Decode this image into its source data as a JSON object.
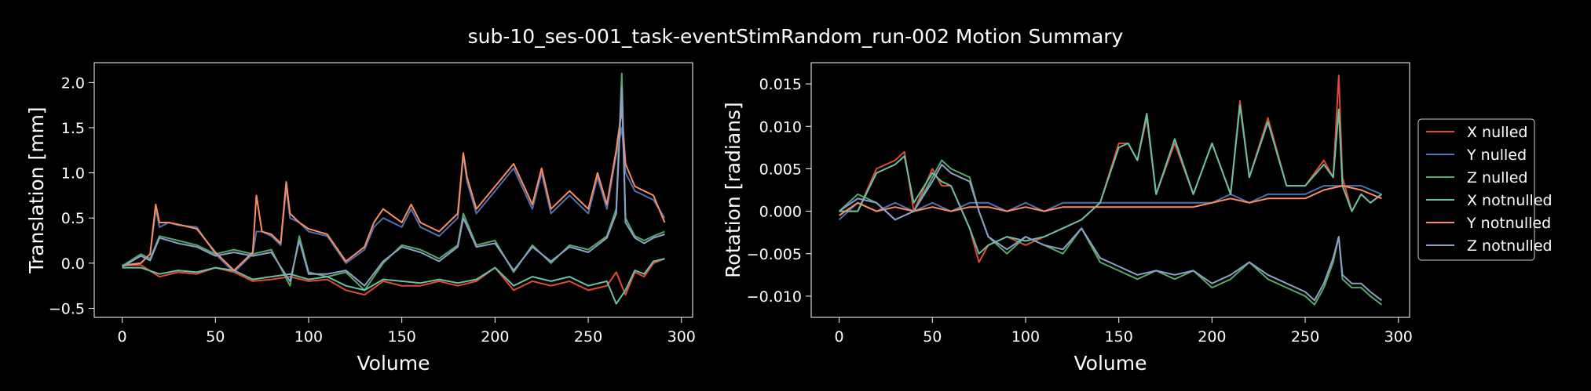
{
  "title": "sub-10_ses-001_task-eventStimRandom_run-002 Motion Summary",
  "legend": {
    "placement": "right",
    "entries": [
      {
        "label": "X nulled",
        "color": "#e24a33"
      },
      {
        "label": "Y nulled",
        "color": "#4c72b0"
      },
      {
        "label": "Z nulled",
        "color": "#55a868"
      },
      {
        "label": "X notnulled",
        "color": "#66c2a5"
      },
      {
        "label": "Y notnulled",
        "color": "#fc8d62"
      },
      {
        "label": "Z notnulled",
        "color": "#8da0cb"
      }
    ]
  },
  "chart_data": [
    {
      "type": "line",
      "title": "",
      "xlabel": "Volume",
      "ylabel": "Translation [mm]",
      "xlim": [
        -15,
        306
      ],
      "ylim": [
        -0.6,
        2.22
      ],
      "xticks": [
        0,
        50,
        100,
        150,
        200,
        250,
        300
      ],
      "yticks": [
        -0.5,
        0.0,
        0.5,
        1.0,
        1.5,
        2.0
      ],
      "ytick_labels": [
        "−0.5",
        "0.0",
        "0.5",
        "1.0",
        "1.5",
        "2.0"
      ],
      "grid": false,
      "series": [
        {
          "name": "X nulled",
          "color": "#e24a33",
          "x": [
            0,
            10,
            20,
            30,
            40,
            50,
            60,
            70,
            80,
            90,
            100,
            110,
            120,
            130,
            140,
            150,
            160,
            170,
            180,
            190,
            200,
            210,
            220,
            230,
            240,
            250,
            260,
            265,
            270,
            275,
            280,
            285,
            291
          ],
          "values": [
            -0.02,
            -0.02,
            -0.15,
            -0.1,
            -0.12,
            -0.05,
            -0.1,
            -0.2,
            -0.18,
            -0.15,
            -0.2,
            -0.18,
            -0.3,
            -0.35,
            -0.2,
            -0.25,
            -0.25,
            -0.2,
            -0.25,
            -0.2,
            -0.05,
            -0.3,
            -0.2,
            -0.25,
            -0.2,
            -0.3,
            -0.25,
            -0.1,
            -0.35,
            -0.1,
            -0.15,
            0.0,
            0.05
          ]
        },
        {
          "name": "Y nulled",
          "color": "#4c72b0",
          "x": [
            0,
            10,
            15,
            18,
            20,
            25,
            30,
            40,
            50,
            60,
            70,
            72,
            75,
            80,
            85,
            88,
            90,
            95,
            100,
            110,
            120,
            130,
            135,
            140,
            150,
            155,
            160,
            170,
            180,
            183,
            185,
            190,
            200,
            210,
            220,
            225,
            230,
            240,
            250,
            255,
            260,
            265,
            268,
            270,
            275,
            280,
            285,
            291
          ],
          "values": [
            -0.02,
            0.0,
            0.1,
            0.6,
            0.4,
            0.45,
            0.42,
            0.4,
            0.1,
            -0.1,
            0.1,
            0.35,
            0.35,
            0.3,
            0.2,
            0.85,
            0.5,
            0.45,
            0.35,
            0.3,
            0.0,
            0.15,
            0.4,
            0.5,
            0.4,
            0.6,
            0.4,
            0.3,
            0.5,
            1.2,
            0.9,
            0.55,
            0.8,
            1.05,
            0.6,
            1.0,
            0.55,
            0.75,
            0.55,
            0.95,
            0.6,
            1.2,
            1.5,
            1.0,
            0.8,
            0.75,
            0.7,
            0.5
          ]
        },
        {
          "name": "Z nulled",
          "color": "#55a868",
          "x": [
            0,
            10,
            15,
            20,
            30,
            40,
            50,
            60,
            70,
            80,
            90,
            95,
            100,
            110,
            120,
            130,
            140,
            150,
            160,
            170,
            180,
            183,
            190,
            200,
            210,
            220,
            230,
            240,
            250,
            260,
            265,
            268,
            270,
            275,
            280,
            285,
            291
          ],
          "values": [
            -0.03,
            0.1,
            0.05,
            0.3,
            0.25,
            0.2,
            0.1,
            0.15,
            0.1,
            0.15,
            -0.25,
            0.3,
            -0.1,
            -0.15,
            -0.1,
            -0.3,
            0.0,
            0.2,
            0.15,
            0.05,
            0.2,
            0.55,
            0.2,
            0.25,
            -0.1,
            0.2,
            0.0,
            0.2,
            0.15,
            0.3,
            0.6,
            2.1,
            0.5,
            0.3,
            0.25,
            0.3,
            0.35
          ]
        },
        {
          "name": "X notnulled",
          "color": "#66c2a5",
          "x": [
            0,
            10,
            20,
            30,
            40,
            50,
            60,
            70,
            80,
            90,
            100,
            110,
            120,
            130,
            140,
            150,
            160,
            170,
            180,
            190,
            200,
            210,
            220,
            230,
            240,
            250,
            260,
            265,
            270,
            275,
            280,
            285,
            291
          ],
          "values": [
            -0.05,
            -0.05,
            -0.12,
            -0.08,
            -0.1,
            -0.05,
            -0.08,
            -0.18,
            -0.15,
            -0.12,
            -0.18,
            -0.15,
            -0.25,
            -0.3,
            -0.18,
            -0.2,
            -0.22,
            -0.18,
            -0.22,
            -0.18,
            -0.05,
            -0.25,
            -0.15,
            -0.2,
            -0.15,
            -0.25,
            -0.2,
            -0.45,
            -0.3,
            -0.08,
            -0.12,
            0.02,
            0.05
          ]
        },
        {
          "name": "Y notnulled",
          "color": "#fc8d62",
          "x": [
            0,
            10,
            15,
            18,
            20,
            25,
            30,
            40,
            50,
            60,
            70,
            72,
            75,
            80,
            85,
            88,
            90,
            95,
            100,
            110,
            120,
            130,
            135,
            140,
            150,
            155,
            160,
            170,
            180,
            183,
            185,
            190,
            200,
            210,
            220,
            225,
            230,
            240,
            250,
            255,
            260,
            265,
            268,
            270,
            275,
            280,
            285,
            291
          ],
          "values": [
            -0.03,
            0.0,
            0.1,
            0.65,
            0.45,
            0.45,
            0.43,
            0.38,
            0.12,
            -0.08,
            0.12,
            0.75,
            0.35,
            0.32,
            0.22,
            0.9,
            0.55,
            0.45,
            0.38,
            0.32,
            0.02,
            0.18,
            0.45,
            0.6,
            0.45,
            0.65,
            0.45,
            0.35,
            0.55,
            1.22,
            0.95,
            0.6,
            0.85,
            1.1,
            0.65,
            1.05,
            0.6,
            0.8,
            0.6,
            1.0,
            0.65,
            1.25,
            1.7,
            1.1,
            0.85,
            0.8,
            0.75,
            0.45
          ]
        },
        {
          "name": "Z notnulled",
          "color": "#8da0cb",
          "x": [
            0,
            10,
            15,
            20,
            30,
            40,
            50,
            60,
            70,
            80,
            90,
            95,
            100,
            110,
            120,
            130,
            140,
            150,
            160,
            170,
            180,
            183,
            190,
            200,
            210,
            220,
            230,
            240,
            250,
            260,
            265,
            268,
            270,
            275,
            280,
            285,
            291
          ],
          "values": [
            -0.04,
            0.08,
            0.03,
            0.28,
            0.22,
            0.18,
            0.08,
            0.12,
            0.08,
            0.12,
            -0.2,
            0.25,
            -0.12,
            -0.12,
            -0.08,
            -0.25,
            0.02,
            0.18,
            0.12,
            0.02,
            0.18,
            0.5,
            0.18,
            0.22,
            -0.08,
            0.18,
            0.02,
            0.18,
            0.12,
            0.28,
            0.55,
            1.95,
            0.45,
            0.28,
            0.22,
            0.28,
            0.32
          ]
        }
      ]
    },
    {
      "type": "line",
      "title": "",
      "xlabel": "Volume",
      "ylabel": "Rotation [radians]",
      "xlim": [
        -15,
        306
      ],
      "ylim": [
        -0.0125,
        0.0175
      ],
      "xticks": [
        0,
        50,
        100,
        150,
        200,
        250,
        300
      ],
      "yticks": [
        -0.01,
        -0.005,
        0.0,
        0.005,
        0.01,
        0.015
      ],
      "ytick_labels": [
        "−0.010",
        "−0.005",
        "0.000",
        "0.005",
        "0.010",
        "0.015"
      ],
      "grid": false,
      "series": [
        {
          "name": "X nulled",
          "color": "#e24a33",
          "x": [
            0,
            10,
            20,
            30,
            35,
            40,
            50,
            55,
            60,
            70,
            75,
            80,
            90,
            100,
            110,
            120,
            130,
            140,
            150,
            155,
            160,
            165,
            170,
            180,
            190,
            200,
            210,
            215,
            220,
            230,
            240,
            250,
            260,
            265,
            268,
            270,
            275,
            280,
            285,
            291
          ],
          "values": [
            0.0,
            0.0,
            0.005,
            0.006,
            0.007,
            0.0,
            0.005,
            0.003,
            0.003,
            -0.002,
            -0.006,
            -0.004,
            -0.003,
            -0.004,
            -0.003,
            -0.002,
            -0.001,
            0.001,
            0.008,
            0.008,
            0.006,
            0.011,
            0.002,
            0.008,
            0.002,
            0.008,
            0.002,
            0.013,
            0.004,
            0.011,
            0.003,
            0.003,
            0.006,
            0.004,
            0.016,
            0.004,
            0.0,
            0.002,
            0.001,
            0.002
          ]
        },
        {
          "name": "Y nulled",
          "color": "#4c72b0",
          "x": [
            0,
            10,
            20,
            30,
            40,
            50,
            60,
            70,
            80,
            90,
            100,
            110,
            120,
            130,
            140,
            150,
            160,
            170,
            180,
            190,
            200,
            210,
            220,
            230,
            240,
            250,
            260,
            270,
            280,
            291
          ],
          "values": [
            -0.001,
            0.001,
            0.0,
            0.001,
            0.0,
            0.001,
            0.0,
            0.001,
            0.001,
            0.0,
            0.001,
            0.0,
            0.001,
            0.001,
            0.001,
            0.001,
            0.001,
            0.001,
            0.001,
            0.001,
            0.001,
            0.002,
            0.001,
            0.002,
            0.002,
            0.002,
            0.003,
            0.003,
            0.003,
            0.002
          ]
        },
        {
          "name": "Z nulled",
          "color": "#55a868",
          "x": [
            0,
            10,
            20,
            30,
            40,
            50,
            55,
            60,
            70,
            75,
            80,
            90,
            100,
            110,
            120,
            130,
            140,
            150,
            160,
            170,
            180,
            190,
            200,
            210,
            220,
            230,
            240,
            250,
            255,
            260,
            265,
            268,
            270,
            275,
            280,
            285,
            291
          ],
          "values": [
            0.0,
            0.002,
            0.001,
            -0.001,
            0.0,
            0.004,
            0.006,
            0.005,
            0.004,
            0.0,
            -0.003,
            -0.005,
            -0.003,
            -0.004,
            -0.005,
            -0.002,
            -0.006,
            -0.007,
            -0.008,
            -0.007,
            -0.008,
            -0.007,
            -0.009,
            -0.008,
            -0.006,
            -0.008,
            -0.009,
            -0.01,
            -0.011,
            -0.009,
            -0.006,
            -0.003,
            -0.008,
            -0.009,
            -0.009,
            -0.01,
            -0.011
          ]
        },
        {
          "name": "X notnulled",
          "color": "#66c2a5",
          "x": [
            0,
            10,
            20,
            30,
            35,
            40,
            50,
            55,
            60,
            70,
            75,
            80,
            90,
            100,
            110,
            120,
            130,
            140,
            150,
            155,
            160,
            165,
            170,
            180,
            190,
            200,
            210,
            215,
            220,
            230,
            240,
            250,
            260,
            265,
            268,
            270,
            275,
            280,
            285,
            291
          ],
          "values": [
            0.0,
            0.0,
            0.0045,
            0.0055,
            0.0065,
            0.001,
            0.0045,
            0.0035,
            0.003,
            -0.002,
            -0.005,
            -0.004,
            -0.003,
            -0.0035,
            -0.003,
            -0.002,
            -0.001,
            0.001,
            0.0075,
            0.008,
            0.006,
            0.0115,
            0.002,
            0.0085,
            0.002,
            0.008,
            0.002,
            0.0125,
            0.004,
            0.0105,
            0.003,
            0.003,
            0.0055,
            0.004,
            0.012,
            0.003,
            0.0,
            0.002,
            0.001,
            0.002
          ]
        },
        {
          "name": "Y notnulled",
          "color": "#fc8d62",
          "x": [
            0,
            10,
            20,
            30,
            40,
            50,
            60,
            70,
            80,
            90,
            100,
            110,
            120,
            130,
            140,
            150,
            160,
            170,
            180,
            190,
            200,
            210,
            220,
            230,
            240,
            250,
            260,
            270,
            280,
            291
          ],
          "values": [
            -0.0005,
            0.001,
            0.0,
            0.0005,
            0.0,
            0.0005,
            0.0,
            0.0005,
            0.0005,
            0.0,
            0.0005,
            0.0,
            0.0005,
            0.0005,
            0.0005,
            0.0005,
            0.0005,
            0.0005,
            0.0005,
            0.0005,
            0.001,
            0.0015,
            0.001,
            0.0015,
            0.0015,
            0.0015,
            0.0025,
            0.003,
            0.0025,
            0.0015
          ]
        },
        {
          "name": "Z notnulled",
          "color": "#8da0cb",
          "x": [
            0,
            10,
            20,
            30,
            40,
            50,
            55,
            60,
            70,
            75,
            80,
            90,
            100,
            110,
            120,
            130,
            140,
            150,
            160,
            170,
            180,
            190,
            200,
            210,
            220,
            230,
            240,
            250,
            255,
            260,
            265,
            268,
            270,
            275,
            280,
            285,
            291
          ],
          "values": [
            0.0,
            0.0015,
            0.001,
            -0.001,
            0.0,
            0.0035,
            0.0055,
            0.0045,
            0.0035,
            0.0,
            -0.003,
            -0.0045,
            -0.003,
            -0.004,
            -0.0045,
            -0.002,
            -0.0055,
            -0.0065,
            -0.0075,
            -0.007,
            -0.0075,
            -0.007,
            -0.0085,
            -0.0075,
            -0.006,
            -0.0075,
            -0.0085,
            -0.0095,
            -0.0105,
            -0.0085,
            -0.0055,
            -0.003,
            -0.0075,
            -0.0085,
            -0.0085,
            -0.0095,
            -0.0105
          ]
        }
      ]
    }
  ]
}
